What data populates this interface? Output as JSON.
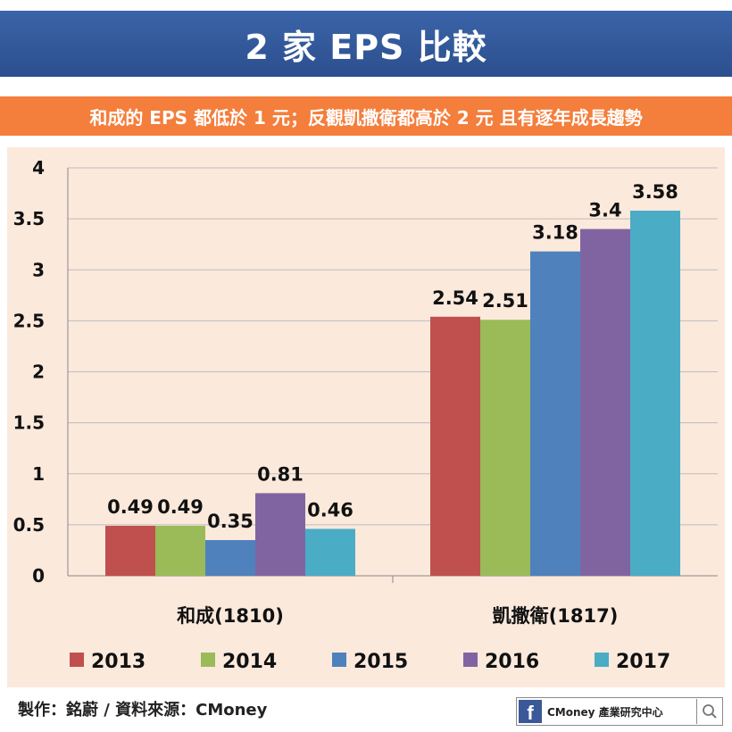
{
  "title": "2 家 EPS 比較",
  "subtitle": "和成的 EPS 都低於 1 元；反觀凱撒衛都高於 2 元 且有逐年成長趨勢",
  "footer": {
    "credit": "製作：銘蔚 / 資料來源：CMoney",
    "badge_text": "CMoney 產業研究中心",
    "badge_icon": "facebook-icon",
    "search_icon": "search-icon"
  },
  "chart_data": {
    "type": "bar",
    "categories": [
      "和成(1810)",
      "凱撒衛(1817)"
    ],
    "series": [
      {
        "name": "2013",
        "color": "#c0504d",
        "values": [
          0.49,
          2.54
        ]
      },
      {
        "name": "2014",
        "color": "#9bbb59",
        "values": [
          0.49,
          2.51
        ]
      },
      {
        "name": "2015",
        "color": "#4f81bd",
        "values": [
          0.35,
          3.18
        ]
      },
      {
        "name": "2016",
        "color": "#8064a2",
        "values": [
          0.81,
          3.4
        ]
      },
      {
        "name": "2017",
        "color": "#4bacc6",
        "values": [
          0.46,
          3.58
        ]
      }
    ],
    "ylim": [
      0,
      4
    ],
    "yticks": [
      0,
      0.5,
      1,
      1.5,
      2,
      2.5,
      3,
      3.5,
      4
    ],
    "grid": true,
    "legend": "bottom",
    "data_labels": true
  }
}
